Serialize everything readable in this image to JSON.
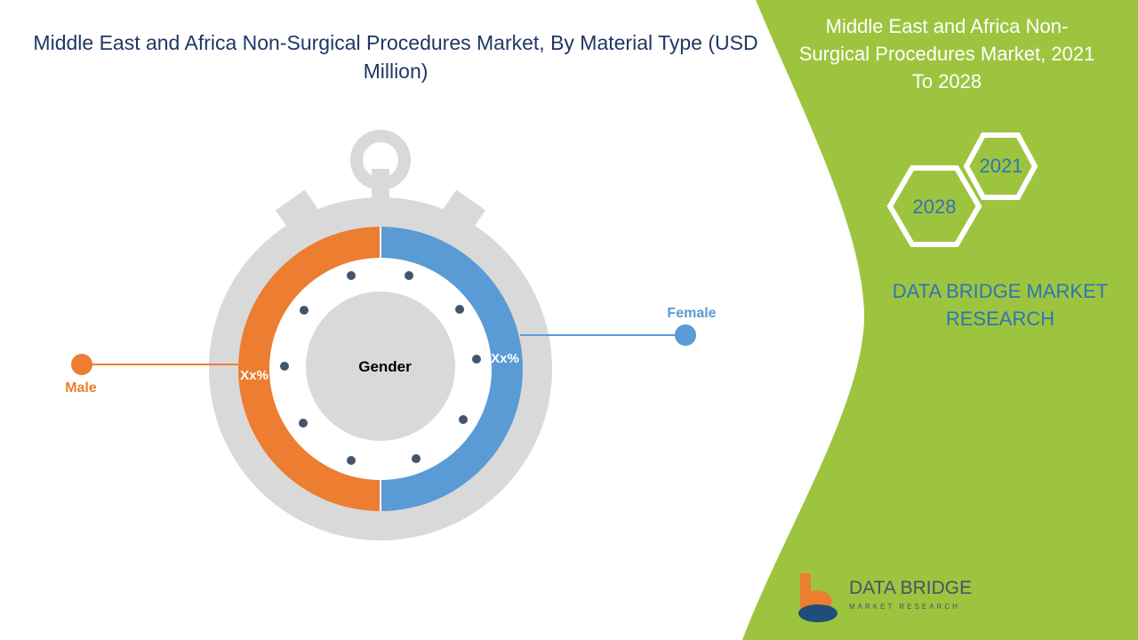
{
  "title": "Middle East and Africa Non-Surgical Procedures Market, By Material Type (USD Million)",
  "side_panel": {
    "title": "Middle East and Africa Non-Surgical Procedures Market, 2021 To 2028",
    "years": [
      "2021",
      "2028"
    ],
    "brand": "DATA BRIDGE MARKET RESEARCH"
  },
  "diagram": {
    "center_label": "Gender",
    "segments": [
      {
        "name": "Male",
        "label": "Xx%"
      },
      {
        "name": "Female",
        "label": "Xx%"
      }
    ]
  },
  "logo": {
    "name": "DATA BRIDGE",
    "tagline": "MARKET RESEARCH"
  }
}
